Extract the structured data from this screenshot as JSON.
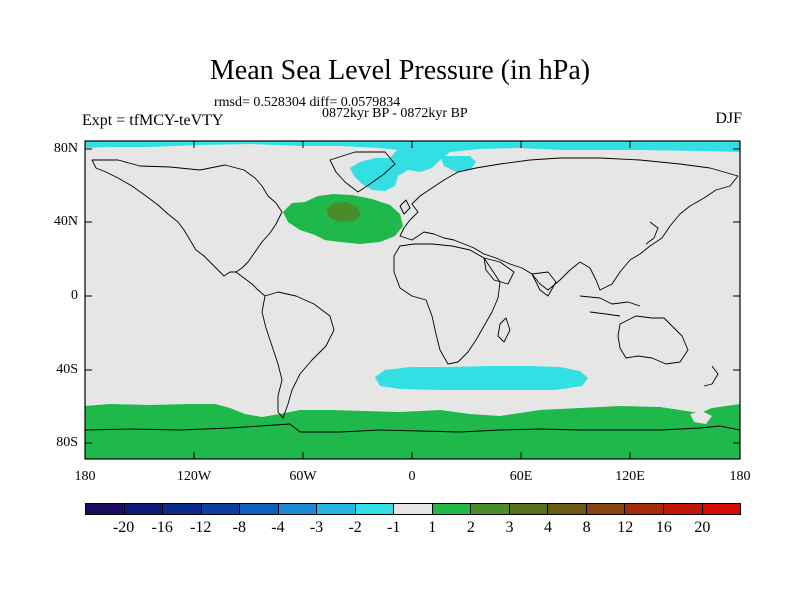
{
  "title": "Mean Sea Level Pressure (in hPa)",
  "stats": "rmsd= 0.528304 diff= 0.0579834",
  "period": "0872kyr BP - 0872kyr BP",
  "expt": "Expt = tfMCY-teVTY",
  "season": "DJF",
  "lat_labels": [
    "80N",
    "40N",
    "0",
    "40S",
    "80S"
  ],
  "lon_labels": [
    "180",
    "120W",
    "60W",
    "0",
    "60E",
    "120E",
    "180"
  ],
  "colorbar": {
    "labels": [
      "-20",
      "-16",
      "-12",
      "-8",
      "-4",
      "-3",
      "-2",
      "-1",
      "1",
      "2",
      "3",
      "4",
      "8",
      "12",
      "16",
      "20"
    ],
    "colors": [
      "#1a0b5e",
      "#0b1a78",
      "#0a2a8c",
      "#0c3fa6",
      "#1060c0",
      "#1a8ad6",
      "#27b5e3",
      "#33dfe3",
      "#e6e6e6",
      "#1fb84a",
      "#4a8c2a",
      "#5a6e1f",
      "#6b5a14",
      "#8a4410",
      "#a82a0c",
      "#c0160a",
      "#d60a08"
    ]
  },
  "field_colors": {
    "background": "#e6e6e6",
    "positive_1_2": "#1fb84a",
    "positive_2_3": "#4a8c2a",
    "negative_1_2": "#33dfe3",
    "land_outline": "#000000"
  }
}
